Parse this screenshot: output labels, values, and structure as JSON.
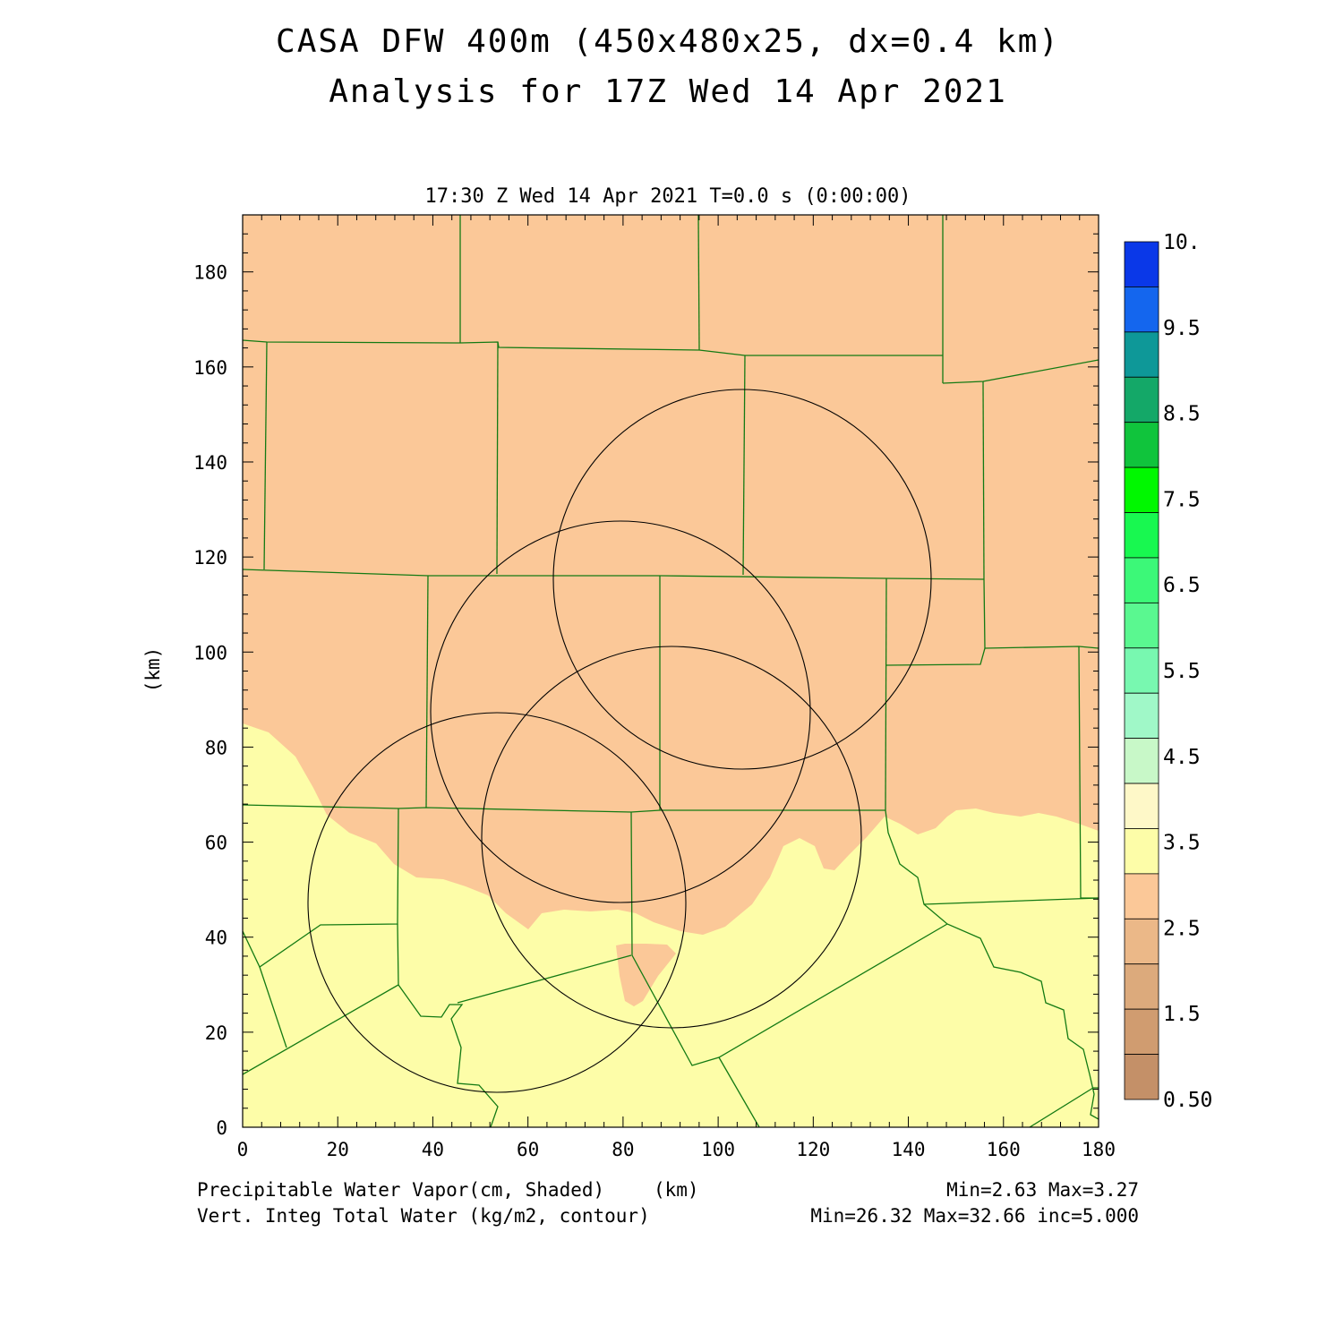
{
  "title": {
    "line1": "CASA DFW 400m (450x480x25, dx=0.4 km)",
    "line2": "Analysis for 17Z Wed 14 Apr 2021"
  },
  "valid_time": "17:30 Z Wed 14 Apr 2021    T=0.0 s (0:00:00)",
  "axes": {
    "x": {
      "range": [
        0,
        180
      ],
      "ticks": [
        "0",
        "20",
        "40",
        "60",
        "80",
        "100",
        "120",
        "140",
        "160",
        "180"
      ]
    },
    "y": {
      "range": [
        0,
        192
      ],
      "ticks": [
        "0",
        "20",
        "40",
        "60",
        "80",
        "100",
        "120",
        "140",
        "160",
        "180"
      ],
      "label": "(km)"
    }
  },
  "colorbar": {
    "labels": [
      "10.",
      "9.5",
      "8.5",
      "7.5",
      "6.5",
      "5.5",
      "4.5",
      "3.5",
      "2.5",
      "1.5",
      "0.50"
    ],
    "colors": [
      "#0a38e8",
      "#1466ee",
      "#0e9898",
      "#14a868",
      "#10c43c",
      "#00f800",
      "#18f850",
      "#3cf878",
      "#5af890",
      "#78f8b0",
      "#a0f8c8",
      "#c8f8c8",
      "#fef8c8",
      "#fdfda8",
      "#fbc898",
      "#ebb888",
      "#dcaa7c",
      "#d09c70",
      "#c49068"
    ]
  },
  "fields": {
    "shaded_colors": {
      "dry": "#fbc898",
      "moist": "#fdfda8"
    },
    "boundary_color": "#137a13",
    "contour_color": "#000000"
  },
  "footer": {
    "line1_left": "Precipitable Water Vapor(cm, Shaded)",
    "line1_unit": "(km)",
    "line1_right": "Min=2.63 Max=3.27",
    "line2_left": "Vert. Integ Total Water (kg/m2, contour)",
    "line2_right": "Min=26.32 Max=32.66 inc=5.000"
  }
}
